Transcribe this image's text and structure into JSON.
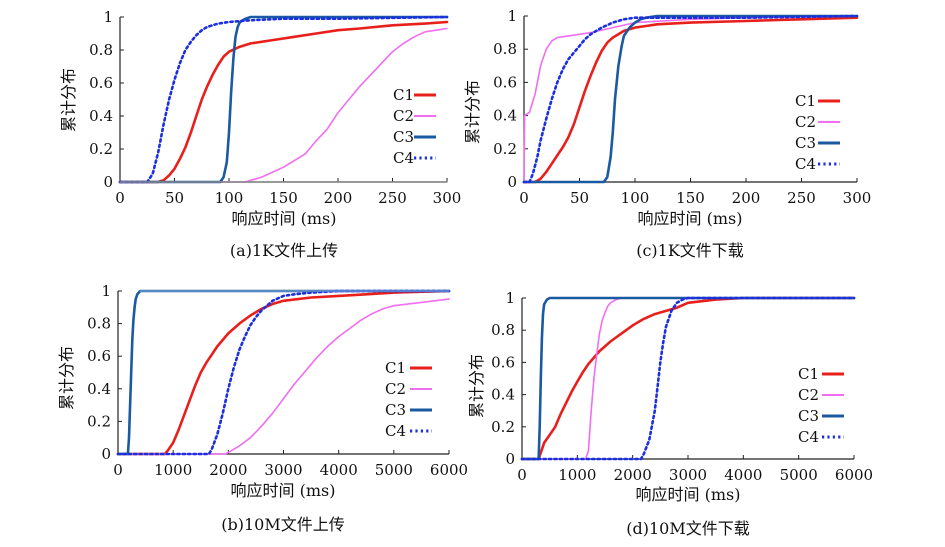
{
  "figure": {
    "background": "#ffffff"
  },
  "series_colors": {
    "C1": "#e8201c",
    "C2": "#f06ef0",
    "C3": "#1a5aa0",
    "C4": "#1c2fe0"
  },
  "chart_data": [
    {
      "type": "line",
      "caption": "(a)1K文件上传",
      "xlabel": "响应时间 (ms)",
      "ylabel": "累计分布",
      "xlim": [
        0,
        300
      ],
      "ylim": [
        0,
        1
      ],
      "xticks": [
        0,
        50,
        100,
        150,
        200,
        250,
        300
      ],
      "yticks": [
        0,
        0.2,
        0.4,
        0.6,
        0.8,
        1
      ],
      "ytick_labels": [
        "0",
        "0.2",
        "0.4",
        "0.6",
        "0.8",
        "1"
      ],
      "legend_position": "right-middle",
      "series": [
        {
          "name": "C1",
          "style": "solid",
          "x": [
            0,
            35,
            40,
            45,
            50,
            55,
            60,
            65,
            70,
            75,
            80,
            85,
            90,
            95,
            100,
            110,
            120,
            140,
            160,
            180,
            200,
            220,
            250,
            280,
            300
          ],
          "y": [
            0,
            0,
            0.01,
            0.04,
            0.08,
            0.14,
            0.21,
            0.3,
            0.4,
            0.5,
            0.58,
            0.65,
            0.71,
            0.76,
            0.79,
            0.82,
            0.84,
            0.86,
            0.88,
            0.9,
            0.92,
            0.93,
            0.95,
            0.96,
            0.97
          ]
        },
        {
          "name": "C2",
          "style": "solid-thin",
          "x": [
            0,
            115,
            120,
            130,
            140,
            150,
            160,
            170,
            180,
            190,
            200,
            210,
            220,
            230,
            240,
            250,
            260,
            270,
            280,
            290,
            300
          ],
          "y": [
            0,
            0,
            0.01,
            0.03,
            0.06,
            0.09,
            0.13,
            0.17,
            0.25,
            0.32,
            0.42,
            0.5,
            0.58,
            0.65,
            0.72,
            0.79,
            0.84,
            0.88,
            0.91,
            0.92,
            0.93
          ]
        },
        {
          "name": "C3",
          "style": "solid",
          "x": [
            0,
            92,
            95,
            98,
            100,
            102,
            104,
            106,
            108,
            110,
            115,
            120,
            130,
            150,
            200,
            300
          ],
          "y": [
            0,
            0,
            0.03,
            0.12,
            0.3,
            0.55,
            0.75,
            0.88,
            0.94,
            0.97,
            0.99,
            1.0,
            1.0,
            1.0,
            1.0,
            1.0
          ]
        },
        {
          "name": "C4",
          "style": "dotted",
          "x": [
            0,
            25,
            30,
            35,
            40,
            45,
            50,
            55,
            60,
            65,
            70,
            75,
            80,
            90,
            100,
            120,
            150,
            200,
            300
          ],
          "y": [
            0,
            0,
            0.05,
            0.18,
            0.35,
            0.5,
            0.62,
            0.72,
            0.8,
            0.85,
            0.89,
            0.92,
            0.94,
            0.96,
            0.97,
            0.98,
            0.99,
            0.99,
            1.0
          ]
        },
        {
          "name": "",
          "style": "gray",
          "x": [
            0,
            300
          ],
          "y": [
            0,
            0
          ]
        }
      ]
    },
    {
      "type": "line",
      "caption": "(c)1K文件下载",
      "xlabel": "响应时间 (ms)",
      "ylabel": "累计分布",
      "xlim": [
        0,
        300
      ],
      "ylim": [
        0,
        1
      ],
      "xticks": [
        0,
        50,
        100,
        150,
        200,
        250,
        300
      ],
      "yticks": [
        0,
        0.2,
        0.4,
        0.6,
        0.8,
        1
      ],
      "ytick_labels": [
        "0",
        "0.2",
        "0.4",
        "0.6",
        "0.8",
        "1"
      ],
      "legend_position": "right-middle",
      "series": [
        {
          "name": "C1",
          "style": "solid",
          "x": [
            0,
            10,
            15,
            20,
            25,
            30,
            35,
            40,
            45,
            50,
            55,
            60,
            65,
            70,
            75,
            80,
            85,
            90,
            100,
            110,
            120,
            150,
            200,
            250,
            300
          ],
          "y": [
            0,
            0,
            0.02,
            0.06,
            0.11,
            0.16,
            0.21,
            0.27,
            0.35,
            0.45,
            0.55,
            0.64,
            0.72,
            0.79,
            0.84,
            0.87,
            0.89,
            0.91,
            0.93,
            0.94,
            0.95,
            0.96,
            0.97,
            0.98,
            0.99
          ]
        },
        {
          "name": "C2",
          "style": "solid-thin",
          "x": [
            0,
            0.5,
            5,
            10,
            15,
            20,
            25,
            30,
            40,
            50,
            60,
            80,
            100,
            150,
            200,
            300
          ],
          "y": [
            0,
            0.4,
            0.42,
            0.53,
            0.7,
            0.8,
            0.85,
            0.87,
            0.88,
            0.89,
            0.9,
            0.93,
            0.96,
            0.98,
            0.99,
            1.0
          ]
        },
        {
          "name": "C3",
          "style": "solid",
          "x": [
            0,
            72,
            75,
            78,
            80,
            82,
            85,
            88,
            90,
            95,
            100,
            105,
            110,
            120,
            150,
            300
          ],
          "y": [
            0,
            0,
            0.03,
            0.15,
            0.3,
            0.5,
            0.7,
            0.82,
            0.88,
            0.93,
            0.96,
            0.98,
            0.99,
            1.0,
            1.0,
            1.0
          ]
        },
        {
          "name": "C4",
          "style": "dotted",
          "x": [
            0,
            5,
            8,
            12,
            15,
            20,
            25,
            30,
            35,
            40,
            45,
            50,
            55,
            60,
            70,
            80,
            90,
            100,
            120,
            150,
            200,
            300
          ],
          "y": [
            0,
            0,
            0.05,
            0.15,
            0.25,
            0.38,
            0.5,
            0.6,
            0.68,
            0.74,
            0.78,
            0.82,
            0.86,
            0.89,
            0.93,
            0.96,
            0.98,
            0.99,
            0.99,
            0.99,
            0.99,
            1.0
          ]
        }
      ]
    },
    {
      "type": "line",
      "caption": "(b)10M文件上传",
      "xlabel": "响应时间 (ms)",
      "ylabel": "累计分布",
      "xlim": [
        0,
        6000
      ],
      "ylim": [
        0,
        1
      ],
      "xticks": [
        0,
        1000,
        2000,
        3000,
        4000,
        5000,
        6000
      ],
      "yticks": [
        0,
        0.2,
        0.4,
        0.6,
        0.8,
        1
      ],
      "ytick_labels": [
        "0",
        "0.2",
        "0.4",
        "0.6",
        "0.8",
        "1"
      ],
      "legend_position": "right-bottom",
      "series": [
        {
          "name": "C1",
          "style": "solid",
          "x": [
            0,
            850,
            900,
            1000,
            1100,
            1200,
            1300,
            1400,
            1500,
            1600,
            1700,
            1800,
            1900,
            2000,
            2200,
            2400,
            2600,
            2800,
            3000,
            3500,
            4000,
            4500,
            5000,
            6000
          ],
          "y": [
            0,
            0,
            0.02,
            0.07,
            0.15,
            0.24,
            0.33,
            0.42,
            0.5,
            0.56,
            0.61,
            0.66,
            0.7,
            0.74,
            0.8,
            0.85,
            0.89,
            0.92,
            0.94,
            0.96,
            0.97,
            0.98,
            0.99,
            1.0
          ]
        },
        {
          "name": "C2",
          "style": "solid-thin",
          "x": [
            0,
            1950,
            2000,
            2200,
            2400,
            2600,
            2800,
            3000,
            3200,
            3400,
            3600,
            3800,
            4000,
            4200,
            4400,
            4600,
            4800,
            5000,
            5500,
            6000
          ],
          "y": [
            0,
            0,
            0.01,
            0.05,
            0.1,
            0.17,
            0.25,
            0.34,
            0.43,
            0.51,
            0.59,
            0.66,
            0.72,
            0.77,
            0.82,
            0.86,
            0.89,
            0.91,
            0.93,
            0.95
          ]
        },
        {
          "name": "C3",
          "style": "solid",
          "x": [
            0,
            180,
            200,
            220,
            240,
            260,
            280,
            300,
            320,
            350,
            400,
            500,
            6000
          ],
          "y": [
            0,
            0,
            0.1,
            0.3,
            0.5,
            0.7,
            0.82,
            0.9,
            0.95,
            0.98,
            1.0,
            1.0,
            1.0
          ]
        },
        {
          "name": "C4",
          "style": "dotted",
          "x": [
            0,
            1650,
            1700,
            1800,
            1900,
            2000,
            2100,
            2200,
            2300,
            2400,
            2500,
            2600,
            2700,
            2800,
            3000,
            3200,
            3500,
            4000,
            6000
          ],
          "y": [
            0,
            0,
            0.03,
            0.12,
            0.25,
            0.4,
            0.53,
            0.64,
            0.72,
            0.79,
            0.84,
            0.88,
            0.91,
            0.94,
            0.97,
            0.98,
            0.99,
            1.0,
            1.0
          ]
        },
        {
          "name": "",
          "style": "light",
          "x": [
            400,
            6000
          ],
          "y": [
            1,
            1
          ]
        }
      ]
    },
    {
      "type": "line",
      "caption": "(d)10M文件下载",
      "xlabel": "响应时间 (ms)",
      "ylabel": "累计分布",
      "xlim": [
        0,
        6000
      ],
      "ylim": [
        0,
        1
      ],
      "xticks": [
        0,
        1000,
        2000,
        3000,
        4000,
        5000,
        6000
      ],
      "yticks": [
        0,
        0.2,
        0.4,
        0.6,
        0.8,
        1
      ],
      "ytick_labels": [
        "0",
        "0.2",
        "0.4",
        "0.6",
        "0.8",
        "1"
      ],
      "legend_position": "right-bottom",
      "series": [
        {
          "name": "C1",
          "style": "solid",
          "x": [
            0,
            300,
            350,
            400,
            500,
            600,
            700,
            800,
            900,
            1000,
            1100,
            1200,
            1300,
            1400,
            1600,
            1800,
            2000,
            2200,
            2400,
            2600,
            2800,
            3000,
            3500,
            4000,
            6000
          ],
          "y": [
            0,
            0,
            0.05,
            0.1,
            0.15,
            0.2,
            0.28,
            0.35,
            0.42,
            0.48,
            0.54,
            0.59,
            0.63,
            0.67,
            0.73,
            0.78,
            0.83,
            0.87,
            0.9,
            0.92,
            0.94,
            0.97,
            0.99,
            1.0,
            1.0
          ]
        },
        {
          "name": "C2",
          "style": "solid-thin",
          "x": [
            0,
            1150,
            1200,
            1250,
            1300,
            1350,
            1400,
            1450,
            1500,
            1550,
            1600,
            1700,
            1800,
            6000
          ],
          "y": [
            0,
            0,
            0.05,
            0.3,
            0.5,
            0.65,
            0.78,
            0.86,
            0.91,
            0.95,
            0.97,
            0.99,
            1.0,
            1.0
          ]
        },
        {
          "name": "C3",
          "style": "solid",
          "x": [
            0,
            300,
            320,
            340,
            360,
            380,
            400,
            450,
            500,
            6000
          ],
          "y": [
            0,
            0,
            0.2,
            0.5,
            0.75,
            0.9,
            0.96,
            0.99,
            1.0,
            1.0
          ]
        },
        {
          "name": "C4",
          "style": "dotted",
          "x": [
            0,
            2150,
            2200,
            2300,
            2400,
            2450,
            2500,
            2550,
            2600,
            2700,
            2800,
            2900,
            3000,
            6000
          ],
          "y": [
            0,
            0,
            0.03,
            0.12,
            0.3,
            0.45,
            0.6,
            0.72,
            0.82,
            0.92,
            0.97,
            0.99,
            1.0,
            1.0
          ]
        }
      ]
    }
  ]
}
